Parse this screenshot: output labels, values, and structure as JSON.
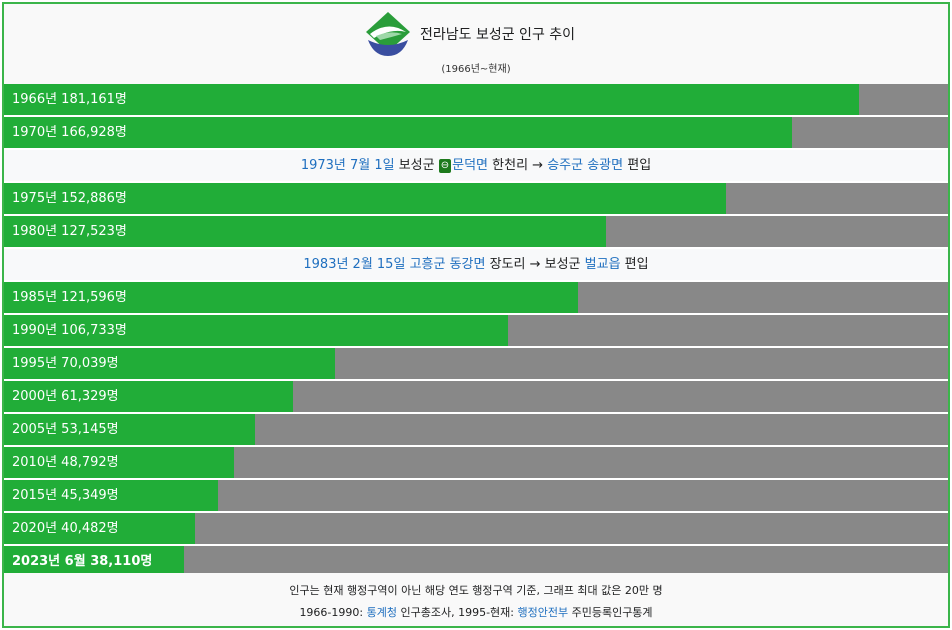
{
  "header": {
    "title": "전라남도 보성군 인구 추이",
    "subtitle": "(1966년~현재)",
    "logo_icon": "boseong-county-emblem"
  },
  "colors": {
    "bar": "#21ad38",
    "remainder": "#888888",
    "border": "#3bb54a",
    "link": "#1f6fbf"
  },
  "chart_data": {
    "type": "bar",
    "orientation": "horizontal",
    "max_value": 200000,
    "unit": "명",
    "categories": [
      "1966년",
      "1970년",
      "1975년",
      "1980년",
      "1985년",
      "1990년",
      "1995년",
      "2000년",
      "2005년",
      "2010년",
      "2015년",
      "2020년",
      "2023년 6월"
    ],
    "values": [
      181161,
      166928,
      152886,
      127523,
      121596,
      106733,
      70039,
      61329,
      53145,
      48792,
      45349,
      40482,
      38110
    ],
    "labels": [
      "1966년 181,161명",
      "1970년 166,928명",
      "1975년 152,886명",
      "1980년 127,523명",
      "1985년 121,596명",
      "1990년 106,733명",
      "1995년 70,039명",
      "2000년 61,329명",
      "2005년 53,145명",
      "2010년 48,792명",
      "2015년 45,349명",
      "2020년 40,482명",
      "2023년 6월 38,110명"
    ],
    "annotations": [
      {
        "after_index": 1,
        "parts": [
          {
            "text": "1973년 7월 1일",
            "link": true
          },
          {
            "text": " 보성군 ",
            "link": false
          },
          {
            "text": "⊖",
            "badge": true
          },
          {
            "text": "문덕면",
            "link": true
          },
          {
            "text": " 한천리 → ",
            "link": false
          },
          {
            "text": "승주군 송광면",
            "link": true
          },
          {
            "text": " 편입",
            "link": false
          }
        ]
      },
      {
        "after_index": 3,
        "parts": [
          {
            "text": "1983년 2월 15일",
            "link": true
          },
          {
            "text": " ",
            "link": false
          },
          {
            "text": "고흥군 동강면",
            "link": true
          },
          {
            "text": " 장도리 → 보성군 ",
            "link": false
          },
          {
            "text": "벌교읍",
            "link": true
          },
          {
            "text": " 편입",
            "link": false
          }
        ]
      }
    ]
  },
  "footer": {
    "note": "인구는 현재 행정구역이 아닌 해당 연도 행정구역 기준, 그래프 최대 값은 20만 명",
    "source_parts": [
      {
        "text": "1966-1990: ",
        "link": false
      },
      {
        "text": "통계청",
        "link": true
      },
      {
        "text": " 인구총조사, 1995-현재: ",
        "link": false
      },
      {
        "text": "행정안전부",
        "link": true
      },
      {
        "text": " 주민등록인구통계",
        "link": false
      }
    ]
  }
}
